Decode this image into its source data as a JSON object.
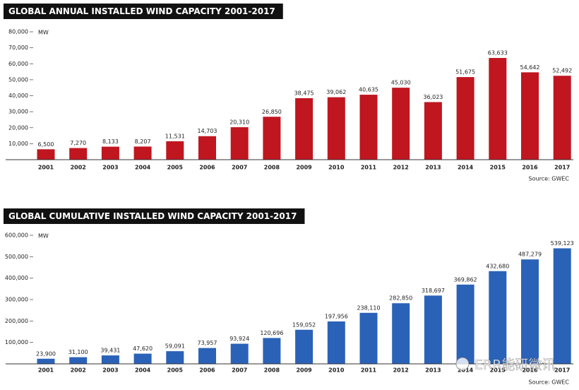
{
  "chart_data": [
    {
      "type": "bar",
      "title": "GLOBAL ANNUAL INSTALLED WIND CAPACITY 2001-2017",
      "unit": "MW",
      "source": "Source: GWEC",
      "categories": [
        "2001",
        "2002",
        "2003",
        "2004",
        "2005",
        "2006",
        "2007",
        "2008",
        "2009",
        "2010",
        "2011",
        "2012",
        "2013",
        "2014",
        "2015",
        "2016",
        "2017"
      ],
      "values": [
        6500,
        7270,
        8133,
        8207,
        11531,
        14703,
        20310,
        26850,
        38475,
        39062,
        40635,
        45030,
        36023,
        51675,
        63633,
        54642,
        52492
      ],
      "value_labels": [
        "6,500",
        "7,270",
        "8,133",
        "8,207",
        "11,531",
        "14,703",
        "20,310",
        "26,850",
        "38,475",
        "39,062",
        "40,635",
        "45,030",
        "36,023",
        "51,675",
        "63,633",
        "54,642",
        "52,492"
      ],
      "color": "#c0161f",
      "ylim": [
        0,
        80000
      ],
      "yticks": [
        {
          "value": 10000,
          "label": "10,000"
        },
        {
          "value": 20000,
          "label": "20,000"
        },
        {
          "value": 30000,
          "label": "30,000"
        },
        {
          "value": 40000,
          "label": "40,000"
        },
        {
          "value": 50000,
          "label": "50,000"
        },
        {
          "value": 60000,
          "label": "60,000"
        },
        {
          "value": 70000,
          "label": "70,000"
        },
        {
          "value": 80000,
          "label": "80,000"
        }
      ]
    },
    {
      "type": "bar",
      "title": "GLOBAL CUMULATIVE INSTALLED WIND CAPACITY 2001-2017",
      "unit": "MW",
      "source": "Source: GWEC",
      "categories": [
        "2001",
        "2002",
        "2003",
        "2004",
        "2005",
        "2006",
        "2007",
        "2008",
        "2009",
        "2010",
        "2011",
        "2012",
        "2013",
        "2014",
        "2015",
        "2016",
        "2017"
      ],
      "values": [
        23900,
        31100,
        39431,
        47620,
        59091,
        73957,
        93924,
        120696,
        159052,
        197956,
        238110,
        282850,
        318697,
        369862,
        432680,
        487279,
        539123
      ],
      "value_labels": [
        "23,900",
        "31,100",
        "39,431",
        "47,620",
        "59,091",
        "73,957",
        "93,924",
        "120,696",
        "159,052",
        "197,956",
        "238,110",
        "282,850",
        "318,697",
        "369,862",
        "432,680",
        "487,279",
        "539,123"
      ],
      "color": "#2a62b8",
      "ylim": [
        0,
        600000
      ],
      "yticks": [
        {
          "value": 100000,
          "label": "100,000"
        },
        {
          "value": 200000,
          "label": "200,000"
        },
        {
          "value": 300000,
          "label": "300,000"
        },
        {
          "value": 400000,
          "label": "400,000"
        },
        {
          "value": 500000,
          "label": "500,000"
        },
        {
          "value": 600000,
          "label": "600,000"
        }
      ]
    }
  ],
  "watermark": "ERR能研微讯"
}
